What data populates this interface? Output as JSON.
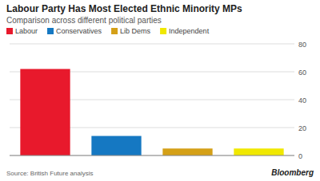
{
  "chart_data": {
    "type": "bar",
    "title": "Labour Party Has Most Elected Ethnic Minority MPs",
    "subtitle": "Comparison across different political parties",
    "source": "Source: British Future analysis",
    "annotations": [
      "Bloomberg"
    ],
    "categories": [
      "Labour",
      "Conservatives",
      "Lib Dems",
      "Independent"
    ],
    "values": [
      62,
      14,
      5,
      5
    ],
    "colors": [
      "#e8192c",
      "#1578c2",
      "#d4a017",
      "#f0e800"
    ],
    "ylim": [
      0,
      80
    ],
    "yticks": [
      0,
      20,
      40,
      60,
      80
    ],
    "grid": true,
    "legend": "top",
    "tick_labels": "y"
  }
}
